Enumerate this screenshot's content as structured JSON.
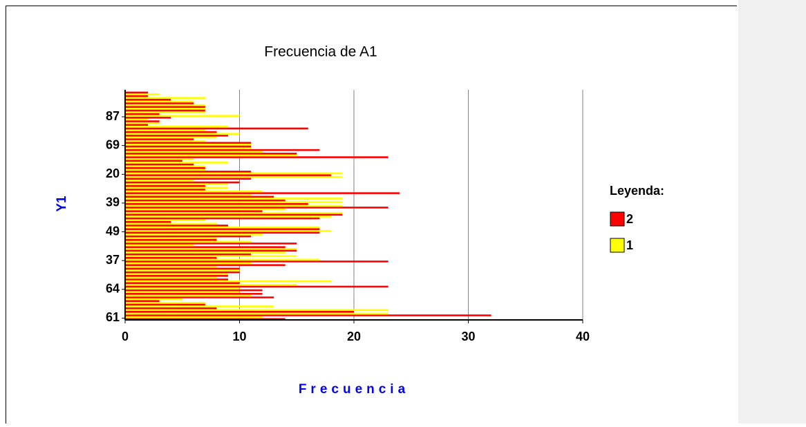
{
  "chart_data": {
    "type": "hbar",
    "title": "Frecuencia de A1",
    "x_label": "Frecuencia",
    "y_label": "Y1",
    "legend_title": "Leyenda:",
    "categories": [
      "61",
      null,
      null,
      null,
      null,
      null,
      null,
      null,
      "64",
      null,
      null,
      null,
      null,
      null,
      null,
      null,
      "37",
      null,
      null,
      null,
      null,
      null,
      null,
      null,
      "49",
      null,
      null,
      null,
      null,
      null,
      null,
      null,
      "39",
      null,
      null,
      null,
      null,
      null,
      null,
      null,
      "20",
      null,
      null,
      null,
      null,
      null,
      null,
      null,
      "69",
      null,
      null,
      null,
      null,
      null,
      null,
      null,
      "87",
      null,
      null,
      null,
      null,
      null,
      null,
      null
    ],
    "series": [
      {
        "name": "2",
        "color": "#ff0000",
        "values": [
          14,
          32,
          20,
          8,
          7,
          3,
          13,
          12,
          12,
          23,
          10,
          9,
          9,
          10,
          10,
          14,
          23,
          8,
          11,
          15,
          14,
          15,
          8,
          11,
          17,
          17,
          9,
          4,
          17,
          19,
          12,
          23,
          16,
          14,
          13,
          24,
          7,
          7,
          10,
          11,
          18,
          11,
          7,
          6,
          5,
          23,
          15,
          17,
          11,
          11,
          6,
          9,
          8,
          16,
          2,
          3,
          4,
          3,
          7,
          7,
          6,
          4,
          2,
          2
        ]
      },
      {
        "name": "1",
        "color": "#ffff00",
        "values": [
          12,
          23,
          23,
          13,
          7,
          5,
          11,
          10,
          10,
          15,
          18,
          8,
          9,
          10,
          8,
          11,
          17,
          15,
          14,
          15,
          6,
          11,
          8,
          12,
          18,
          17,
          8,
          7,
          18,
          19,
          14,
          19,
          19,
          19,
          11,
          12,
          9,
          9,
          6,
          19,
          19,
          7,
          7,
          9,
          6,
          15,
          12,
          11,
          11,
          7,
          8,
          10,
          7,
          9,
          3,
          2,
          10,
          7,
          7,
          7,
          6,
          7,
          3,
          0
        ]
      }
    ],
    "xlim": [
      0,
      40
    ],
    "xticks": [
      0,
      10,
      20,
      30,
      40
    ],
    "grid": true
  }
}
